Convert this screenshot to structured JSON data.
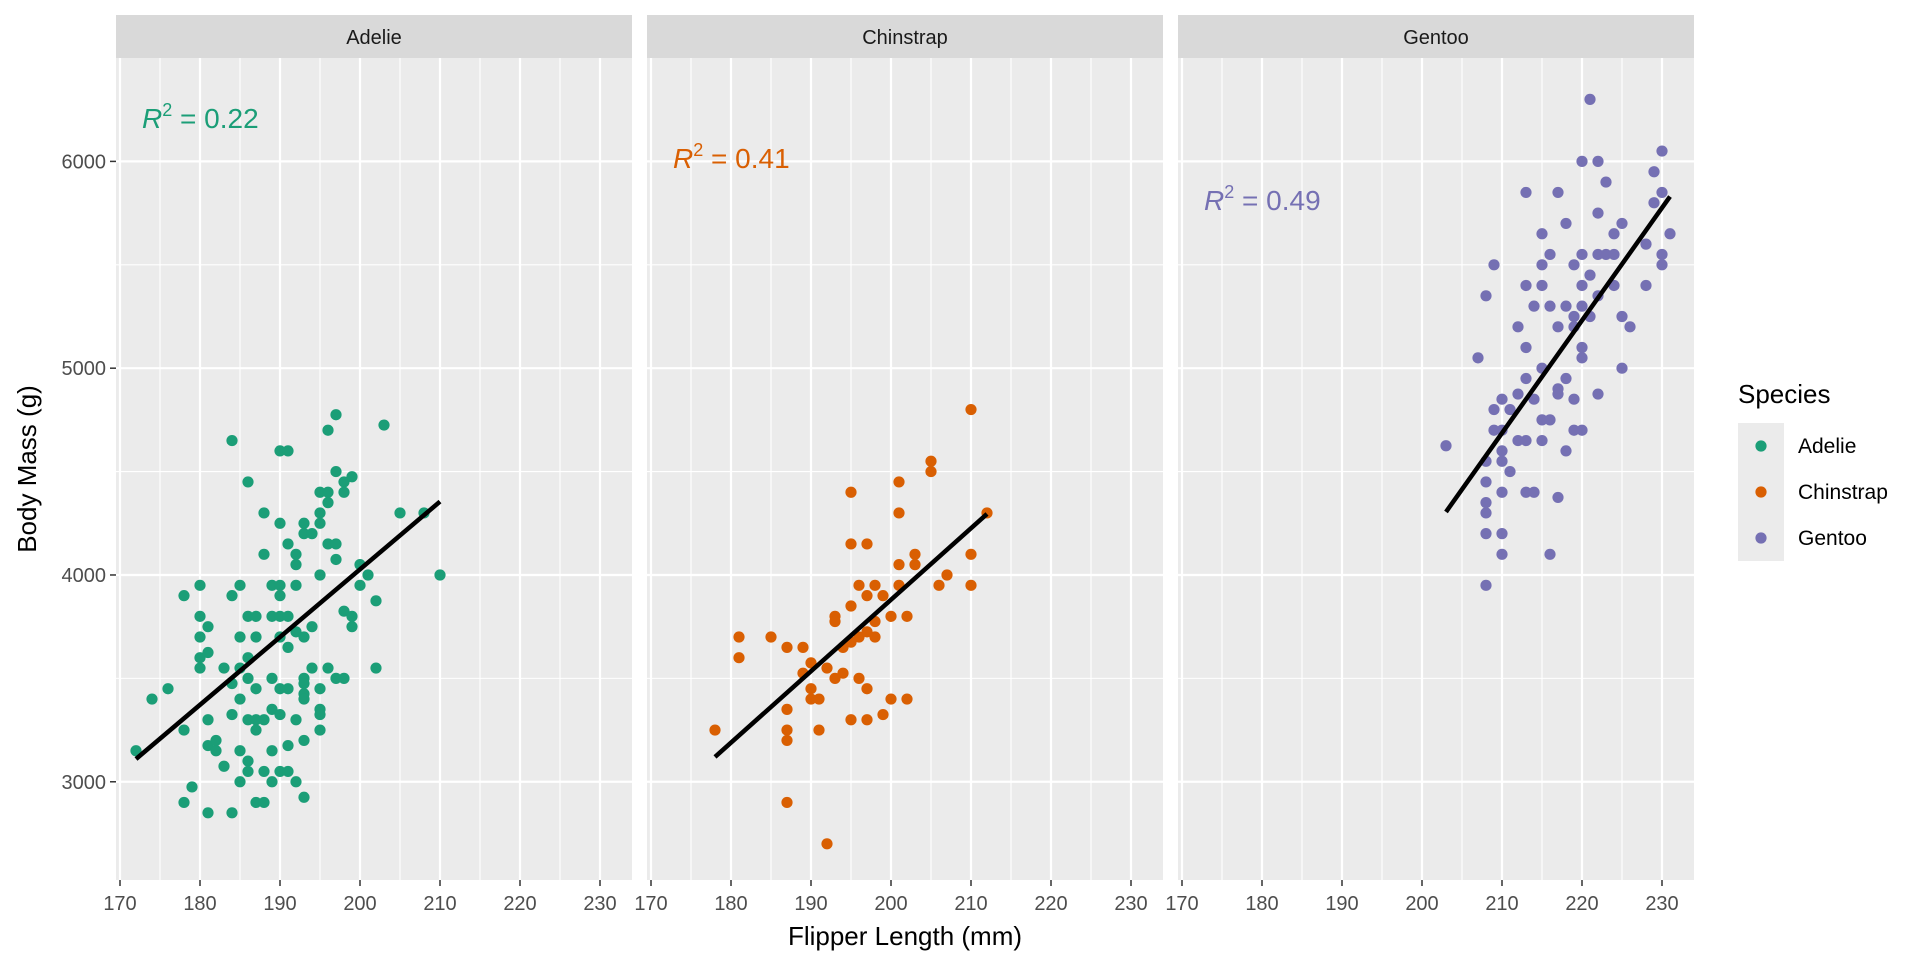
{
  "chart_data": {
    "type": "scatter",
    "facets": [
      {
        "name": "Adelie",
        "r2_value": "0.22",
        "fit_line": {
          "x": [
            172,
            210
          ],
          "y": [
            3110,
            4355
          ]
        },
        "points": [
          [
            172,
            3150
          ],
          [
            174,
            3400
          ],
          [
            176,
            3450
          ],
          [
            178,
            3900
          ],
          [
            178,
            2900
          ],
          [
            178,
            3250
          ],
          [
            179,
            2975
          ],
          [
            180,
            3950
          ],
          [
            180,
            3800
          ],
          [
            180,
            3700
          ],
          [
            180,
            3600
          ],
          [
            180,
            3550
          ],
          [
            181,
            3750
          ],
          [
            181,
            3625
          ],
          [
            181,
            3300
          ],
          [
            181,
            3175
          ],
          [
            181,
            2850
          ],
          [
            182,
            3200
          ],
          [
            182,
            3150
          ],
          [
            183,
            3550
          ],
          [
            183,
            3075
          ],
          [
            184,
            4650
          ],
          [
            184,
            3900
          ],
          [
            184,
            3475
          ],
          [
            184,
            3325
          ],
          [
            184,
            2850
          ],
          [
            185,
            3950
          ],
          [
            185,
            3700
          ],
          [
            185,
            3550
          ],
          [
            185,
            3400
          ],
          [
            185,
            3150
          ],
          [
            185,
            3000
          ],
          [
            186,
            4450
          ],
          [
            186,
            3800
          ],
          [
            186,
            3600
          ],
          [
            186,
            3500
          ],
          [
            186,
            3300
          ],
          [
            186,
            3100
          ],
          [
            186,
            3050
          ],
          [
            187,
            3800
          ],
          [
            187,
            3700
          ],
          [
            187,
            3450
          ],
          [
            187,
            3300
          ],
          [
            187,
            3250
          ],
          [
            187,
            2900
          ],
          [
            188,
            4300
          ],
          [
            188,
            4100
          ],
          [
            188,
            3300
          ],
          [
            188,
            3050
          ],
          [
            188,
            2900
          ],
          [
            189,
            3950
          ],
          [
            189,
            3800
          ],
          [
            189,
            3500
          ],
          [
            189,
            3350
          ],
          [
            189,
            3150
          ],
          [
            189,
            3000
          ],
          [
            190,
            4600
          ],
          [
            190,
            4250
          ],
          [
            190,
            3950
          ],
          [
            190,
            3900
          ],
          [
            190,
            3800
          ],
          [
            190,
            3700
          ],
          [
            190,
            3450
          ],
          [
            190,
            3325
          ],
          [
            190,
            3050
          ],
          [
            191,
            4600
          ],
          [
            191,
            4150
          ],
          [
            191,
            3800
          ],
          [
            191,
            3650
          ],
          [
            191,
            3450
          ],
          [
            191,
            3175
          ],
          [
            191,
            3050
          ],
          [
            192,
            4100
          ],
          [
            192,
            4050
          ],
          [
            192,
            3950
          ],
          [
            192,
            3725
          ],
          [
            192,
            3300
          ],
          [
            192,
            3000
          ],
          [
            193,
            4250
          ],
          [
            193,
            4200
          ],
          [
            193,
            3700
          ],
          [
            193,
            3500
          ],
          [
            193,
            3475
          ],
          [
            193,
            3425
          ],
          [
            193,
            3400
          ],
          [
            193,
            3200
          ],
          [
            193,
            2925
          ],
          [
            194,
            4200
          ],
          [
            194,
            3750
          ],
          [
            194,
            3550
          ],
          [
            195,
            4400
          ],
          [
            195,
            4300
          ],
          [
            195,
            4250
          ],
          [
            195,
            4000
          ],
          [
            195,
            3450
          ],
          [
            195,
            3350
          ],
          [
            195,
            3325
          ],
          [
            195,
            3250
          ],
          [
            196,
            4700
          ],
          [
            196,
            4400
          ],
          [
            196,
            4350
          ],
          [
            196,
            4150
          ],
          [
            196,
            3550
          ],
          [
            197,
            4775
          ],
          [
            197,
            4500
          ],
          [
            197,
            4150
          ],
          [
            197,
            4075
          ],
          [
            197,
            3500
          ],
          [
            198,
            4450
          ],
          [
            198,
            4400
          ],
          [
            198,
            3825
          ],
          [
            198,
            3500
          ],
          [
            199,
            4475
          ],
          [
            199,
            3800
          ],
          [
            199,
            3750
          ],
          [
            200,
            4050
          ],
          [
            200,
            3950
          ],
          [
            201,
            4000
          ],
          [
            202,
            3875
          ],
          [
            202,
            3550
          ],
          [
            203,
            4725
          ],
          [
            205,
            4300
          ],
          [
            208,
            4300
          ],
          [
            210,
            4000
          ]
        ]
      },
      {
        "name": "Chinstrap",
        "r2_value": "0.41",
        "fit_line": {
          "x": [
            178,
            212
          ],
          "y": [
            3120,
            4295
          ]
        },
        "points": [
          [
            178,
            3250
          ],
          [
            181,
            3700
          ],
          [
            181,
            3600
          ],
          [
            185,
            3700
          ],
          [
            187,
            3650
          ],
          [
            187,
            3350
          ],
          [
            187,
            3250
          ],
          [
            187,
            3200
          ],
          [
            187,
            2900
          ],
          [
            189,
            3525
          ],
          [
            189,
            3650
          ],
          [
            190,
            3575
          ],
          [
            190,
            3450
          ],
          [
            190,
            3400
          ],
          [
            191,
            3400
          ],
          [
            191,
            3250
          ],
          [
            192,
            3550
          ],
          [
            192,
            2700
          ],
          [
            193,
            3500
          ],
          [
            193,
            3800
          ],
          [
            193,
            3775
          ],
          [
            194,
            3650
          ],
          [
            194,
            3525
          ],
          [
            195,
            4400
          ],
          [
            195,
            4150
          ],
          [
            195,
            3850
          ],
          [
            195,
            3675
          ],
          [
            195,
            3300
          ],
          [
            196,
            3500
          ],
          [
            196,
            3950
          ],
          [
            196,
            3700
          ],
          [
            197,
            4150
          ],
          [
            197,
            3900
          ],
          [
            197,
            3725
          ],
          [
            197,
            3450
          ],
          [
            197,
            3300
          ],
          [
            198,
            3775
          ],
          [
            198,
            3700
          ],
          [
            198,
            3950
          ],
          [
            199,
            3900
          ],
          [
            199,
            3325
          ],
          [
            200,
            3800
          ],
          [
            200,
            3400
          ],
          [
            201,
            4450
          ],
          [
            201,
            4300
          ],
          [
            201,
            4050
          ],
          [
            201,
            3950
          ],
          [
            202,
            3800
          ],
          [
            202,
            3400
          ],
          [
            203,
            4100
          ],
          [
            203,
            4050
          ],
          [
            205,
            4550
          ],
          [
            205,
            4500
          ],
          [
            206,
            3950
          ],
          [
            207,
            4000
          ],
          [
            210,
            4800
          ],
          [
            210,
            4100
          ],
          [
            210,
            3950
          ],
          [
            212,
            4300
          ]
        ]
      },
      {
        "name": "Gentoo",
        "r2_value": "0.49",
        "fit_line": {
          "x": [
            203,
            231
          ],
          "y": [
            4305,
            5830
          ]
        },
        "points": [
          [
            203,
            4625
          ],
          [
            207,
            5050
          ],
          [
            208,
            5350
          ],
          [
            208,
            4550
          ],
          [
            208,
            4450
          ],
          [
            208,
            4350
          ],
          [
            208,
            4300
          ],
          [
            208,
            4200
          ],
          [
            208,
            3950
          ],
          [
            209,
            5500
          ],
          [
            209,
            4800
          ],
          [
            209,
            4700
          ],
          [
            210,
            4850
          ],
          [
            210,
            4700
          ],
          [
            210,
            4600
          ],
          [
            210,
            4550
          ],
          [
            210,
            4400
          ],
          [
            210,
            4200
          ],
          [
            210,
            4100
          ],
          [
            211,
            4800
          ],
          [
            211,
            4500
          ],
          [
            212,
            5200
          ],
          [
            212,
            4875
          ],
          [
            212,
            4650
          ],
          [
            213,
            5850
          ],
          [
            213,
            5400
          ],
          [
            213,
            5100
          ],
          [
            213,
            4950
          ],
          [
            213,
            4650
          ],
          [
            213,
            4400
          ],
          [
            214,
            5300
          ],
          [
            214,
            4850
          ],
          [
            214,
            4400
          ],
          [
            215,
            5650
          ],
          [
            215,
            5500
          ],
          [
            215,
            5400
          ],
          [
            215,
            5000
          ],
          [
            215,
            4750
          ],
          [
            215,
            4650
          ],
          [
            216,
            5550
          ],
          [
            216,
            5300
          ],
          [
            216,
            4750
          ],
          [
            216,
            4100
          ],
          [
            217,
            5850
          ],
          [
            217,
            5200
          ],
          [
            217,
            4900
          ],
          [
            217,
            4875
          ],
          [
            217,
            4375
          ],
          [
            218,
            5700
          ],
          [
            218,
            5300
          ],
          [
            218,
            4950
          ],
          [
            218,
            4600
          ],
          [
            219,
            5500
          ],
          [
            219,
            5250
          ],
          [
            219,
            5200
          ],
          [
            219,
            4850
          ],
          [
            219,
            4700
          ],
          [
            220,
            6000
          ],
          [
            220,
            5550
          ],
          [
            220,
            5400
          ],
          [
            220,
            5300
          ],
          [
            220,
            5100
          ],
          [
            220,
            5050
          ],
          [
            220,
            4700
          ],
          [
            221,
            6300
          ],
          [
            221,
            5450
          ],
          [
            221,
            5250
          ],
          [
            222,
            6000
          ],
          [
            222,
            5750
          ],
          [
            222,
            5550
          ],
          [
            222,
            5350
          ],
          [
            222,
            4875
          ],
          [
            223,
            5900
          ],
          [
            223,
            5550
          ],
          [
            224,
            5550
          ],
          [
            224,
            5650
          ],
          [
            224,
            5400
          ],
          [
            225,
            5700
          ],
          [
            225,
            5250
          ],
          [
            225,
            5000
          ],
          [
            226,
            5200
          ],
          [
            228,
            5600
          ],
          [
            228,
            5400
          ],
          [
            229,
            5950
          ],
          [
            229,
            5800
          ],
          [
            230,
            6050
          ],
          [
            230,
            5850
          ],
          [
            230,
            5550
          ],
          [
            230,
            5500
          ],
          [
            231,
            5650
          ]
        ]
      }
    ],
    "xlabel": "Flipper Length (mm)",
    "ylabel": "Body Mass (g)",
    "xlim": [
      169.5,
      234
    ],
    "ylim": [
      2525,
      6500
    ],
    "xticks": [
      170,
      180,
      190,
      200,
      210,
      220,
      230
    ],
    "yticks": [
      3000,
      4000,
      5000,
      6000
    ],
    "grid": true,
    "legend": {
      "title": "Species",
      "placement": "right",
      "entries": [
        {
          "label": "Adelie",
          "color": "#1b9e77"
        },
        {
          "label": "Chinstrap",
          "color": "#d95f02"
        },
        {
          "label": "Gentoo",
          "color": "#7570b3"
        }
      ]
    },
    "colors": {
      "panel_bg": "#ebebeb",
      "strip_bg": "#d9d9d9",
      "grid": "#ffffff",
      "fit_line": "#000000",
      "axis_text": "#4d4d4d"
    }
  }
}
